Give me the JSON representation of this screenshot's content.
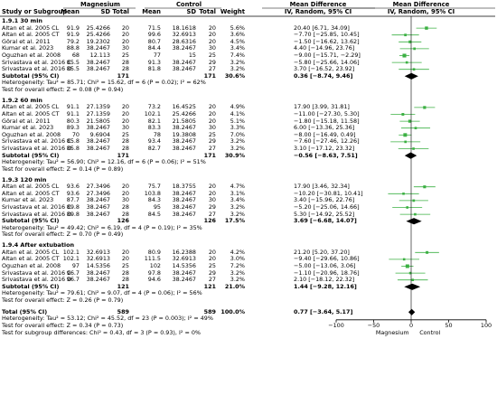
{
  "header": {
    "group_magnesium": "Magnesium",
    "group_control": "Control",
    "mean_difference": "Mean Difference",
    "mean_difference_right": "Mean Difference",
    "method": "IV, Random, 95% CI",
    "method_right": "IV, Random, 95% CI",
    "study_col": "Study or Subgroup",
    "mean": "Mean",
    "sd": "SD",
    "total": "Total",
    "mean_c": "Mean",
    "sd_c": "SD",
    "total_c": "Total",
    "weight": "Weight"
  },
  "subgroups": [
    {
      "title": "1.9.1 30 min",
      "studies": [
        {
          "study": "Altan et al. 2005 CL",
          "m_mean": "91.9",
          "m_sd": "25.4266",
          "m_total": "20",
          "c_mean": "71.5",
          "c_sd": "18.1618",
          "c_total": "20",
          "weight": "5.6%",
          "md": "20.40 [6.71, 34.09]",
          "est": 20.4,
          "lo": 6.71,
          "hi": 34.09
        },
        {
          "study": "Altan et al. 2005 CT",
          "m_mean": "91.9",
          "m_sd": "25.4266",
          "m_total": "20",
          "c_mean": "99.6",
          "c_sd": "32.6913",
          "c_total": "20",
          "weight": "3.6%",
          "md": "−7.70 [−25.85, 10.45]",
          "est": -7.7,
          "lo": -25.85,
          "hi": 10.45
        },
        {
          "study": "Göral et al. 2011",
          "m_mean": "79.2",
          "m_sd": "19.2302",
          "m_total": "20",
          "c_mean": "80.7",
          "c_sd": "28.6316",
          "c_total": "20",
          "weight": "4.5%",
          "md": "−1.50 [−16.62, 13.62]",
          "est": -1.5,
          "lo": -16.62,
          "hi": 13.62
        },
        {
          "study": "Kumar et al. 2023",
          "m_mean": "88.8",
          "m_sd": "38.2467",
          "m_total": "30",
          "c_mean": "84.4",
          "c_sd": "38.2467",
          "c_total": "30",
          "weight": "3.4%",
          "md": "4.40 [−14.96, 23.76]",
          "est": 4.4,
          "lo": -14.96,
          "hi": 23.76
        },
        {
          "study": "Oguzhan et al. 2008",
          "m_mean": "68",
          "m_sd": "12.113",
          "m_total": "25",
          "c_mean": "77",
          "c_sd": "15",
          "c_total": "25",
          "weight": "7.4%",
          "md": "−9.00 [−15.71, −2.29]",
          "est": -9.0,
          "lo": -15.71,
          "hi": -2.29
        },
        {
          "study": "Srivastava et al. 2016 C",
          "m_mean": "85.5",
          "m_sd": "38.2467",
          "m_total": "28",
          "c_mean": "91.3",
          "c_sd": "38.2467",
          "c_total": "29",
          "weight": "3.2%",
          "md": "−5.80 [−25.66, 14.06]",
          "est": -5.8,
          "lo": -25.66,
          "hi": 14.06
        },
        {
          "study": "Srivastava et al. 2016 D",
          "m_mean": "85.5",
          "m_sd": "38.2467",
          "m_total": "28",
          "c_mean": "81.8",
          "c_sd": "38.2467",
          "c_total": "27",
          "weight": "3.2%",
          "md": "3.70 [−16.52, 23.92]",
          "est": 3.7,
          "lo": -16.52,
          "hi": 23.92
        }
      ],
      "subtotal": {
        "label": "Subtotal (95% CI)",
        "m_total": "171",
        "c_total": "171",
        "weight": "30.6%",
        "md": "0.36 [−8.74, 9.46]",
        "est": 0.36,
        "lo": -8.74,
        "hi": 9.46
      },
      "heterogeneity": "Heterogeneity: Tau² = 85.71; Chi² = 15.62, df = 6 (P = 0.02); I² = 62%",
      "overall": "Test for overall effect: Z = 0.08 (P = 0.94)"
    },
    {
      "title": "1.9.2 60 min",
      "studies": [
        {
          "study": "Altan et al. 2005 CL",
          "m_mean": "91.1",
          "m_sd": "27.1359",
          "m_total": "20",
          "c_mean": "73.2",
          "c_sd": "16.4525",
          "c_total": "20",
          "weight": "4.9%",
          "md": "17.90 [3.99, 31.81]",
          "est": 17.9,
          "lo": 3.99,
          "hi": 31.81
        },
        {
          "study": "Altan et al. 2005 CT",
          "m_mean": "91.1",
          "m_sd": "27.1359",
          "m_total": "20",
          "c_mean": "102.1",
          "c_sd": "25.4266",
          "c_total": "20",
          "weight": "4.1%",
          "md": "−11.00 [−27.30, 5.30]",
          "est": -11.0,
          "lo": -27.3,
          "hi": 5.3
        },
        {
          "study": "Göral et al. 2011",
          "m_mean": "80.3",
          "m_sd": "21.5805",
          "m_total": "20",
          "c_mean": "82.1",
          "c_sd": "21.5805",
          "c_total": "20",
          "weight": "5.1%",
          "md": "−1.80 [−15.18, 11.58]",
          "est": -1.8,
          "lo": -15.18,
          "hi": 11.58
        },
        {
          "study": "Kumar et al. 2023",
          "m_mean": "89.3",
          "m_sd": "38.2467",
          "m_total": "30",
          "c_mean": "83.3",
          "c_sd": "38.2467",
          "c_total": "30",
          "weight": "3.3%",
          "md": "6.00 [−13.36, 25.36]",
          "est": 6.0,
          "lo": -13.36,
          "hi": 25.36
        },
        {
          "study": "Oguzhan et al. 2008",
          "m_mean": "70",
          "m_sd": "9.6904",
          "m_total": "25",
          "c_mean": "78",
          "c_sd": "19.3808",
          "c_total": "25",
          "weight": "7.0%",
          "md": "−8.00 [−16.49, 0.49]",
          "est": -8.0,
          "lo": -16.49,
          "hi": 0.49
        },
        {
          "study": "Srivastava et al. 2016 C",
          "m_mean": "85.8",
          "m_sd": "38.2467",
          "m_total": "28",
          "c_mean": "93.4",
          "c_sd": "38.2467",
          "c_total": "29",
          "weight": "3.2%",
          "md": "−7.60 [−27.46, 12.26]",
          "est": -7.6,
          "lo": -27.46,
          "hi": 12.26
        },
        {
          "study": "Srivastava et al. 2016 D",
          "m_mean": "85.8",
          "m_sd": "38.2467",
          "m_total": "28",
          "c_mean": "82.7",
          "c_sd": "38.2467",
          "c_total": "27",
          "weight": "3.2%",
          "md": "3.10 [−17.12, 23.32]",
          "est": 3.1,
          "lo": -17.12,
          "hi": 23.32
        }
      ],
      "subtotal": {
        "label": "Subtotal (95% CI)",
        "m_total": "171",
        "c_total": "171",
        "weight": "30.9%",
        "md": "−0.56 [−8.63, 7.51]",
        "est": -0.56,
        "lo": -8.63,
        "hi": 7.51
      },
      "heterogeneity": "Heterogeneity: Tau² = 56.90; Chi² = 12.16, df = 6 (P = 0.06); I² = 51%",
      "overall": "Test for overall effect: Z = 0.14 (P = 0.89)"
    },
    {
      "title": "1.9.3 120 min",
      "studies": [
        {
          "study": "Altan et al. 2005 CL",
          "m_mean": "93.6",
          "m_sd": "27.3496",
          "m_total": "20",
          "c_mean": "75.7",
          "c_sd": "18.3755",
          "c_total": "20",
          "weight": "4.7%",
          "md": "17.90 [3.46, 32.34]",
          "est": 17.9,
          "lo": 3.46,
          "hi": 32.34
        },
        {
          "study": "Altan et al. 2005 CT",
          "m_mean": "93.6",
          "m_sd": "27.3496",
          "m_total": "20",
          "c_mean": "103.8",
          "c_sd": "38.2467",
          "c_total": "20",
          "weight": "3.1%",
          "md": "−10.20 [−30.81, 10.41]",
          "est": -10.2,
          "lo": -30.81,
          "hi": 10.41
        },
        {
          "study": "Kumar et al. 2023",
          "m_mean": "87.7",
          "m_sd": "38.2467",
          "m_total": "30",
          "c_mean": "84.3",
          "c_sd": "38.2467",
          "c_total": "30",
          "weight": "3.4%",
          "md": "3.40 [−15.96, 22.76]",
          "est": 3.4,
          "lo": -15.96,
          "hi": 22.76
        },
        {
          "study": "Srivastava et al. 2016 C",
          "m_mean": "89.8",
          "m_sd": "38.2467",
          "m_total": "28",
          "c_mean": "95",
          "c_sd": "38.2467",
          "c_total": "29",
          "weight": "3.2%",
          "md": "−5.20 [−25.06, 14.66]",
          "est": -5.2,
          "lo": -25.06,
          "hi": 14.66
        },
        {
          "study": "Srivastava et al. 2016 D",
          "m_mean": "89.8",
          "m_sd": "38.2467",
          "m_total": "28",
          "c_mean": "84.5",
          "c_sd": "38.2467",
          "c_total": "27",
          "weight": "3.2%",
          "md": "5.30 [−14.92, 25.52]",
          "est": 5.3,
          "lo": -14.92,
          "hi": 25.52
        }
      ],
      "subtotal": {
        "label": "Subtotal (95% CI)",
        "m_total": "126",
        "c_total": "126",
        "weight": "17.5%",
        "md": "3.69 [−6.68, 14.07]",
        "est": 3.69,
        "lo": -6.68,
        "hi": 14.07
      },
      "heterogeneity": "Heterogeneity: Tau² = 49.42; Chi² = 6.19, df = 4 (P = 0.19); I² = 35%",
      "overall": "Test for overall effect: Z = 0.70 (P = 0.49)"
    },
    {
      "title": "1.9.4 After extubation",
      "studies": [
        {
          "study": "Altan et al. 2005 CL",
          "m_mean": "102.1",
          "m_sd": "32.6913",
          "m_total": "20",
          "c_mean": "80.9",
          "c_sd": "16.2388",
          "c_total": "20",
          "weight": "4.2%",
          "md": "21.20 [5.20, 37.20]",
          "est": 21.2,
          "lo": 5.2,
          "hi": 37.2
        },
        {
          "study": "Altan et al. 2005 CT",
          "m_mean": "102.1",
          "m_sd": "32.6913",
          "m_total": "20",
          "c_mean": "111.5",
          "c_sd": "32.6913",
          "c_total": "20",
          "weight": "3.0%",
          "md": "−9.40 [−29.66, 10.86]",
          "est": -9.4,
          "lo": -29.66,
          "hi": 10.86
        },
        {
          "study": "Oguzhan et al. 2008",
          "m_mean": "97",
          "m_sd": "14.5356",
          "m_total": "25",
          "c_mean": "102",
          "c_sd": "14.5356",
          "c_total": "25",
          "weight": "7.2%",
          "md": "−5.00 [−13.06, 3.06]",
          "est": -5.0,
          "lo": -13.06,
          "hi": 3.06
        },
        {
          "study": "Srivastava et al. 2016 C",
          "m_mean": "96.7",
          "m_sd": "38.2467",
          "m_total": "28",
          "c_mean": "97.8",
          "c_sd": "38.2467",
          "c_total": "29",
          "weight": "3.2%",
          "md": "−1.10 [−20.96, 18.76]",
          "est": -1.1,
          "lo": -20.96,
          "hi": 18.76
        },
        {
          "study": "Srivastava et al. 2016 D",
          "m_mean": "96.7",
          "m_sd": "38.2467",
          "m_total": "28",
          "c_mean": "94.6",
          "c_sd": "38.2467",
          "c_total": "27",
          "weight": "3.2%",
          "md": "2.10 [−18.12, 22.32]",
          "est": 2.1,
          "lo": -18.12,
          "hi": 22.32
        }
      ],
      "subtotal": {
        "label": "Subtotal (95% CI)",
        "m_total": "121",
        "c_total": "121",
        "weight": "21.0%",
        "md": "1.44 [−9.28, 12.16]",
        "est": 1.44,
        "lo": -9.28,
        "hi": 12.16
      },
      "heterogeneity": "Heterogeneity: Tau² = 79.61; Chi² = 9.07, df = 4 (P = 0.06); I² = 56%",
      "overall": "Test for overall effect: Z = 0.26 (P = 0.79)"
    }
  ],
  "total": {
    "label": "Total (95% CI)",
    "m_total": "589",
    "c_total": "589",
    "weight": "100.0%",
    "md": "0.77 [−3.64, 5.17]",
    "est": 0.77,
    "lo": -3.64,
    "hi": 5.17
  },
  "footer": {
    "heterogeneity": "Heterogeneity: Tau² = 53.12; Chi² = 45.52, df = 23 (P = 0.003); I² = 49%",
    "overall": "Test for overall effect: Z = 0.34 (P = 0.73)",
    "subgroup_diff": "Test for subgroup differences: Chi² = 0.43, df = 3 (P = 0.93), I² = 0%"
  },
  "axis": {
    "ticks": [
      -100,
      -50,
      0,
      50,
      100
    ],
    "tick_labels": [
      "−100",
      "−50",
      "0",
      "50",
      "100"
    ],
    "left_label": "Magnesium",
    "right_label": "Control",
    "xlim": [
      -100,
      100
    ]
  },
  "colors": {
    "ci_line": "#3cb043",
    "point": "#3cb043",
    "diamond": "#000000"
  }
}
